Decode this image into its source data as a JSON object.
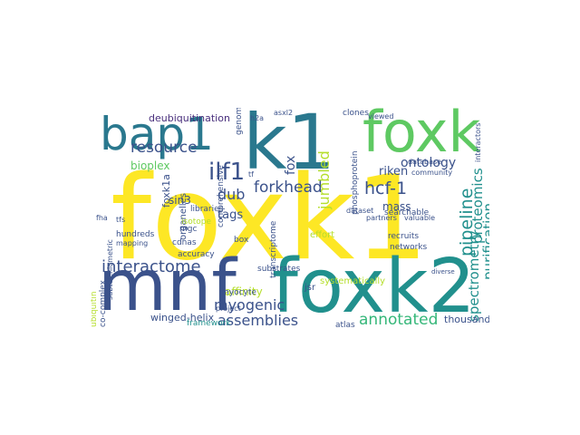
{
  "palette": {
    "yellow": "#fde725",
    "teal": "#21908d",
    "dark_teal": "#2a788e",
    "navy": "#3b528b",
    "purple": "#472d7b",
    "dark": "#440154",
    "green": "#5ec962",
    "lime": "#b5de2b",
    "sea": "#35b779",
    "blue": "#31688e"
  },
  "words": [
    {
      "text": "foxk1",
      "color": "yellow"
    },
    {
      "text": "mnf",
      "color": "navy"
    },
    {
      "text": "foxk2",
      "color": "teal"
    },
    {
      "text": "k1",
      "color": "dark_teal"
    },
    {
      "text": "foxk",
      "color": "green"
    },
    {
      "text": "bap1",
      "color": "dark_teal"
    },
    {
      "text": "interactome",
      "color": "navy"
    },
    {
      "text": "resource",
      "color": "navy"
    },
    {
      "text": "ilf1",
      "color": "navy"
    },
    {
      "text": "forkhead",
      "color": "navy"
    },
    {
      "text": "hcf-1",
      "color": "navy"
    },
    {
      "text": "dub",
      "color": "navy"
    },
    {
      "text": "myogenic",
      "color": "navy"
    },
    {
      "text": "assemblies",
      "color": "navy"
    },
    {
      "text": "annotated",
      "color": "sea"
    },
    {
      "text": "pipeline",
      "color": "teal"
    },
    {
      "text": "proteomics",
      "color": "teal"
    },
    {
      "text": "purification",
      "color": "teal"
    },
    {
      "text": "spectrometry",
      "color": "teal"
    },
    {
      "text": "jumbled",
      "color": "lime"
    },
    {
      "text": "fox",
      "color": "navy"
    },
    {
      "text": "foxk1a",
      "color": "navy"
    },
    {
      "text": "organelles",
      "color": "navy"
    },
    {
      "text": "bioplex",
      "color": "green"
    },
    {
      "text": "sin3",
      "color": "navy"
    },
    {
      "text": "deubiquitination",
      "color": "purple"
    },
    {
      "text": "ontology",
      "color": "navy"
    },
    {
      "text": "riken",
      "color": "navy"
    },
    {
      "text": "mass",
      "color": "navy"
    },
    {
      "text": "tags",
      "color": "navy"
    },
    {
      "text": "affinity",
      "color": "lime"
    },
    {
      "text": "thousands",
      "color": "navy"
    },
    {
      "text": "winged-helix",
      "color": "navy"
    },
    {
      "text": "framework",
      "color": "teal"
    },
    {
      "text": "atlas",
      "color": "navy"
    },
    {
      "text": "jsr",
      "color": "navy"
    },
    {
      "text": "substrates",
      "color": "navy"
    },
    {
      "text": "myocyte",
      "color": "navy"
    },
    {
      "text": "accuracy",
      "color": "navy"
    },
    {
      "text": "cdnas",
      "color": "navy"
    },
    {
      "text": "mgc",
      "color": "navy"
    },
    {
      "text": "isotope",
      "color": "lime"
    },
    {
      "text": "hundreds",
      "color": "navy"
    },
    {
      "text": "mapping",
      "color": "navy"
    },
    {
      "text": "libraries",
      "color": "navy"
    },
    {
      "text": "comprehensive",
      "color": "navy"
    },
    {
      "text": "transcriptome",
      "color": "navy"
    },
    {
      "text": "effort",
      "color": "lime"
    },
    {
      "text": "systematically",
      "color": "lime"
    },
    {
      "text": "networks",
      "color": "navy"
    },
    {
      "text": "recruits",
      "color": "navy"
    },
    {
      "text": "searchable",
      "color": "navy"
    },
    {
      "text": "partners",
      "color": "navy"
    },
    {
      "text": "valuable",
      "color": "navy"
    },
    {
      "text": "database",
      "color": "navy"
    },
    {
      "text": "community",
      "color": "navy"
    },
    {
      "text": "phosphoprotein",
      "color": "navy"
    },
    {
      "text": "clones",
      "color": "navy"
    },
    {
      "text": "viewed",
      "color": "navy"
    },
    {
      "text": "genome",
      "color": "navy"
    },
    {
      "text": "ubiquitin",
      "color": "lime"
    },
    {
      "text": "co-complex",
      "color": "navy"
    },
    {
      "text": "subtoichiometric",
      "color": "navy"
    },
    {
      "text": "fha",
      "color": "navy"
    },
    {
      "text": "tfs",
      "color": "navy"
    },
    {
      "text": "asxl2",
      "color": "navy"
    },
    {
      "text": "h2a",
      "color": "navy"
    },
    {
      "text": "box",
      "color": "navy"
    },
    {
      "text": "project",
      "color": "navy"
    },
    {
      "text": "diverse",
      "color": "navy"
    },
    {
      "text": "dataset",
      "color": "navy"
    },
    {
      "text": "interactors",
      "color": "navy"
    },
    {
      "text": "tf",
      "color": "navy"
    }
  ]
}
